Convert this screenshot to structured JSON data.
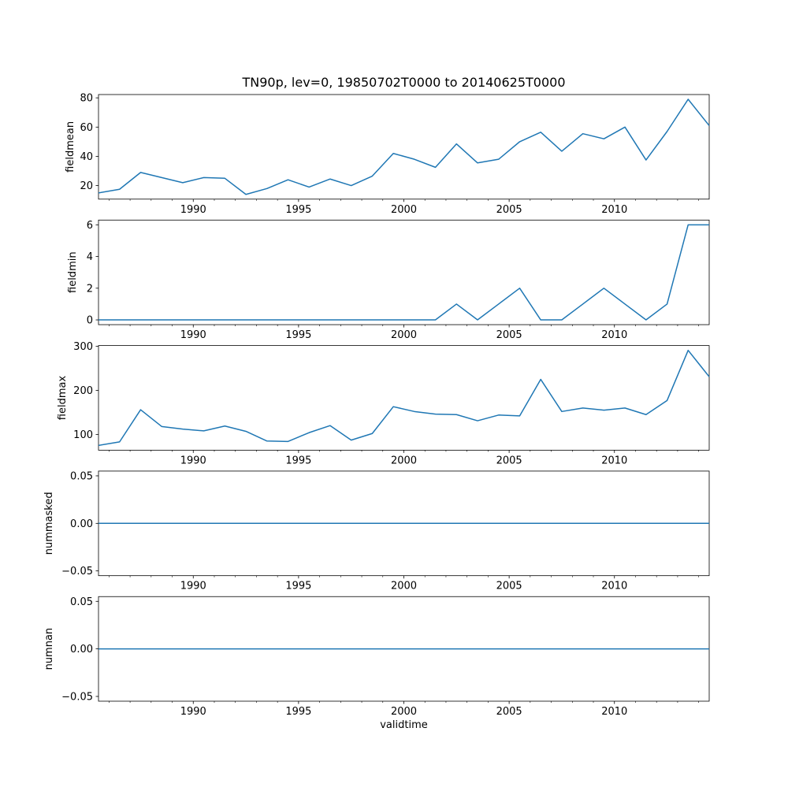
{
  "chart_data": {
    "type": "line",
    "title": "TN90p, lev=0, 19850702T0000 to 20140625T0000",
    "xlabel": "validtime",
    "line_color": "#1f77b4",
    "grid": false,
    "legend": "none",
    "x": [
      1985.5,
      1986.5,
      1987.5,
      1988.5,
      1989.5,
      1990.5,
      1991.5,
      1992.5,
      1993.5,
      1994.5,
      1995.5,
      1996.5,
      1997.5,
      1998.5,
      1999.5,
      2000.5,
      2001.5,
      2002.5,
      2003.5,
      2004.5,
      2005.5,
      2006.5,
      2007.5,
      2008.5,
      2009.5,
      2010.5,
      2011.5,
      2012.5,
      2013.5,
      2014.5
    ],
    "xlim": [
      1985.5,
      2014.5
    ],
    "xticks_major": [
      1990,
      1995,
      2000,
      2005,
      2010
    ],
    "xticks_minor": [
      1986,
      1987,
      1988,
      1989,
      1990,
      1991,
      1992,
      1993,
      1994,
      1995,
      1996,
      1997,
      1998,
      1999,
      2000,
      2001,
      2002,
      2003,
      2004,
      2005,
      2006,
      2007,
      2008,
      2009,
      2010,
      2011,
      2012,
      2013,
      2014
    ],
    "subplots": [
      {
        "name": "fieldmean",
        "ylabel": "fieldmean",
        "ylim": [
          10.75,
          82.25
        ],
        "yticks": [
          20,
          40,
          60,
          80
        ],
        "ytick_labels": [
          "20",
          "40",
          "60",
          "80"
        ],
        "values": [
          15,
          17.5,
          29,
          25.5,
          22,
          25.5,
          25,
          14,
          18,
          24,
          19,
          24.5,
          20,
          26.5,
          42,
          38,
          32.5,
          48.5,
          35.5,
          38,
          50,
          56.5,
          43.5,
          55.5,
          52,
          60,
          37.5,
          57,
          79,
          61
        ]
      },
      {
        "name": "fieldmin",
        "ylabel": "fieldmin",
        "ylim": [
          -0.3,
          6.3
        ],
        "yticks": [
          0,
          2,
          4,
          6
        ],
        "ytick_labels": [
          "0",
          "2",
          "4",
          "6"
        ],
        "values": [
          0,
          0,
          0,
          0,
          0,
          0,
          0,
          0,
          0,
          0,
          0,
          0,
          0,
          0,
          0,
          0,
          0,
          1,
          0,
          1,
          2,
          0,
          0,
          1,
          2,
          1,
          0,
          1,
          6,
          6
        ]
      },
      {
        "name": "fieldmax",
        "ylabel": "fieldmax",
        "ylim": [
          64.2,
          301.8
        ],
        "yticks": [
          100,
          200,
          300
        ],
        "ytick_labels": [
          "100",
          "200",
          "300"
        ],
        "values": [
          75,
          83,
          156,
          118,
          112,
          108,
          119,
          107,
          85,
          84,
          104,
          120,
          87,
          102,
          163,
          152,
          146,
          145,
          131,
          144,
          142,
          225,
          152,
          160,
          155,
          160,
          145,
          177,
          291,
          231
        ]
      },
      {
        "name": "nummasked",
        "ylabel": "nummasked",
        "ylim": [
          -0.055,
          0.055
        ],
        "yticks": [
          -0.05,
          0,
          0.05
        ],
        "ytick_labels": [
          "−0.05",
          "0.00",
          "0.05"
        ],
        "values": [
          0,
          0,
          0,
          0,
          0,
          0,
          0,
          0,
          0,
          0,
          0,
          0,
          0,
          0,
          0,
          0,
          0,
          0,
          0,
          0,
          0,
          0,
          0,
          0,
          0,
          0,
          0,
          0,
          0,
          0
        ]
      },
      {
        "name": "numnan",
        "ylabel": "numnan",
        "ylim": [
          -0.055,
          0.055
        ],
        "yticks": [
          -0.05,
          0,
          0.05
        ],
        "ytick_labels": [
          "−0.05",
          "0.00",
          "0.05"
        ],
        "values": [
          0,
          0,
          0,
          0,
          0,
          0,
          0,
          0,
          0,
          0,
          0,
          0,
          0,
          0,
          0,
          0,
          0,
          0,
          0,
          0,
          0,
          0,
          0,
          0,
          0,
          0,
          0,
          0,
          0,
          0
        ]
      }
    ]
  }
}
